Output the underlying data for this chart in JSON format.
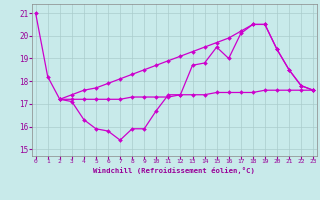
{
  "title": "Windchill (Refroidissement éolien,°C)",
  "bg_color": "#c8eaea",
  "line_color": "#cc00cc",
  "grid_color": "#aacccc",
  "xticks": [
    0,
    1,
    2,
    3,
    4,
    5,
    6,
    7,
    8,
    9,
    10,
    11,
    12,
    13,
    14,
    15,
    16,
    17,
    18,
    19,
    20,
    21,
    22,
    23
  ],
  "yticks": [
    15,
    16,
    17,
    18,
    19,
    20,
    21
  ],
  "line1_x": [
    0,
    1,
    2,
    3,
    4,
    5,
    6,
    7,
    8,
    9,
    10,
    11,
    12,
    13,
    14,
    15,
    16,
    17,
    18,
    19,
    20,
    21,
    22,
    23
  ],
  "line1_y": [
    21.0,
    18.2,
    17.2,
    17.1,
    16.3,
    15.9,
    15.8,
    15.4,
    15.9,
    15.9,
    16.7,
    17.4,
    17.4,
    18.7,
    18.8,
    19.5,
    19.0,
    20.1,
    20.5,
    20.5,
    19.4,
    18.5,
    17.8,
    17.6
  ],
  "line2_x": [
    2,
    3,
    4,
    5,
    6,
    7,
    8,
    9,
    10,
    11,
    12,
    13,
    14,
    15,
    16,
    17,
    18,
    19,
    20,
    21,
    22,
    23
  ],
  "line2_y": [
    17.2,
    17.2,
    17.2,
    17.2,
    17.2,
    17.2,
    17.3,
    17.3,
    17.3,
    17.3,
    17.4,
    17.4,
    17.4,
    17.5,
    17.5,
    17.5,
    17.5,
    17.6,
    17.6,
    17.6,
    17.6,
    17.6
  ],
  "line3_x": [
    2,
    3,
    4,
    5,
    6,
    7,
    8,
    9,
    10,
    11,
    12,
    13,
    14,
    15,
    16,
    17,
    18,
    19,
    20,
    21,
    22,
    23
  ],
  "line3_y": [
    17.2,
    17.4,
    17.6,
    17.7,
    17.9,
    18.1,
    18.3,
    18.5,
    18.7,
    18.9,
    19.1,
    19.3,
    19.5,
    19.7,
    19.9,
    20.2,
    20.5,
    20.5,
    19.4,
    18.5,
    17.8,
    17.6
  ],
  "xlim": [
    -0.3,
    23.3
  ],
  "ylim": [
    14.7,
    21.4
  ]
}
